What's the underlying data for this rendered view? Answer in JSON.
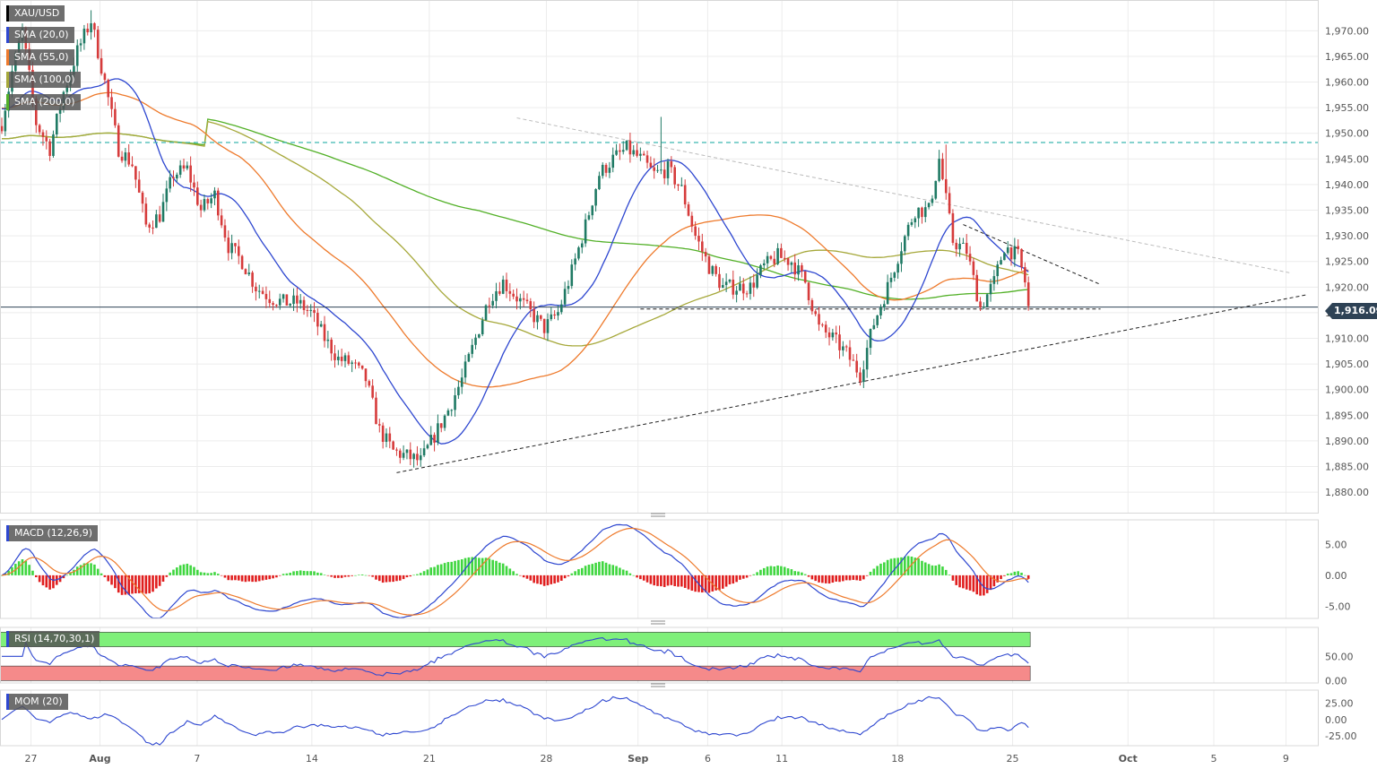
{
  "symbol": "XAU/USD",
  "last_price": "1,916.09",
  "indicators": {
    "sma20": "SMA (20,0)",
    "sma55": "SMA (55,0)",
    "sma100": "SMA (100,0)",
    "sma200": "SMA (200,0)",
    "macd": "MACD (12,26,9)",
    "rsi": "RSI (14,70,30,1)",
    "mom": "MOM (20)"
  },
  "colors": {
    "sma20": "#2e47d0",
    "sma55": "#ee7a2c",
    "sma100": "#a6a83a",
    "sma200": "#52b027",
    "bull": "#1f7a64",
    "bear": "#d63b3b",
    "resistance": "#3cb6b0",
    "rsi_overbought": "#7ff07a",
    "rsi_oversold": "#f58a8a"
  },
  "chart_data": {
    "type": "candlestick",
    "x_tick_labels": [
      "27",
      "Aug",
      "7",
      "14",
      "21",
      "28",
      "Sep",
      "6",
      "11",
      "18",
      "25",
      "Oct",
      "5",
      "9"
    ],
    "price_axis": {
      "ticks": [
        "1,970.00",
        "1,965.00",
        "1,960.00",
        "1,955.00",
        "1,950.00",
        "1,945.00",
        "1,940.00",
        "1,935.00",
        "1,930.00",
        "1,925.00",
        "1,920.00",
        "1,915.00",
        "1,910.00",
        "1,905.00",
        "1,900.00",
        "1,895.00",
        "1,890.00",
        "1,885.00",
        "1,880.00"
      ],
      "range": [
        1876,
        1976
      ]
    },
    "horizontal_levels": [
      1948.2,
      1916.09,
      1915.9
    ],
    "trendlines": [
      {
        "style": "dotted",
        "from_index": 150,
        "from_value": 1953,
        "to_index": 375,
        "to_value": 1922.8
      },
      {
        "style": "dashed",
        "from_index": 115,
        "from_value": 1883.8,
        "to_index": 380,
        "to_value": 1918.5
      },
      {
        "style": "dashed",
        "from_index": 280,
        "from_value": 1932.2,
        "to_index": 320,
        "to_value": 1920.5
      }
    ],
    "anchors": [
      [
        0,
        1952
      ],
      [
        3,
        1962
      ],
      [
        6,
        1970
      ],
      [
        10,
        1952
      ],
      [
        14,
        1947
      ],
      [
        18,
        1958
      ],
      [
        22,
        1966
      ],
      [
        26,
        1972
      ],
      [
        30,
        1960
      ],
      [
        34,
        1947
      ],
      [
        38,
        1944
      ],
      [
        42,
        1932
      ],
      [
        46,
        1934
      ],
      [
        50,
        1942
      ],
      [
        54,
        1943
      ],
      [
        58,
        1935
      ],
      [
        62,
        1938
      ],
      [
        66,
        1928
      ],
      [
        70,
        1925
      ],
      [
        74,
        1920
      ],
      [
        78,
        1918
      ],
      [
        82,
        1917
      ],
      [
        86,
        1917
      ],
      [
        90,
        1915
      ],
      [
        94,
        1910
      ],
      [
        98,
        1906
      ],
      [
        102,
        1905
      ],
      [
        106,
        1902
      ],
      [
        110,
        1892
      ],
      [
        114,
        1888
      ],
      [
        118,
        1887
      ],
      [
        122,
        1886
      ],
      [
        126,
        1891
      ],
      [
        130,
        1896
      ],
      [
        134,
        1902
      ],
      [
        138,
        1910
      ],
      [
        142,
        1918
      ],
      [
        146,
        1921
      ],
      [
        150,
        1918
      ],
      [
        154,
        1915
      ],
      [
        158,
        1912
      ],
      [
        162,
        1915
      ],
      [
        166,
        1923
      ],
      [
        170,
        1932
      ],
      [
        174,
        1942
      ],
      [
        178,
        1945
      ],
      [
        182,
        1947
      ],
      [
        186,
        1945
      ],
      [
        190,
        1942
      ],
      [
        194,
        1943
      ],
      [
        198,
        1939
      ],
      [
        202,
        1930
      ],
      [
        206,
        1924
      ],
      [
        210,
        1920
      ],
      [
        214,
        1920
      ],
      [
        218,
        1920
      ],
      [
        222,
        1924
      ],
      [
        226,
        1926
      ],
      [
        230,
        1925
      ],
      [
        234,
        1921
      ],
      [
        238,
        1912
      ],
      [
        242,
        1910
      ],
      [
        246,
        1907
      ],
      [
        250,
        1903
      ],
      [
        254,
        1913
      ],
      [
        258,
        1920
      ],
      [
        262,
        1928
      ],
      [
        266,
        1935
      ],
      [
        270,
        1935
      ],
      [
        273,
        1945
      ],
      [
        277,
        1929
      ],
      [
        281,
        1927
      ],
      [
        285,
        1916
      ],
      [
        289,
        1921
      ],
      [
        292,
        1928
      ],
      [
        296,
        1926
      ],
      [
        298,
        1921
      ],
      [
        299,
        1916
      ]
    ],
    "macd_panel": {
      "ticks": [
        "5.00",
        "0.00",
        "-5.00"
      ],
      "range": [
        -7,
        9
      ]
    },
    "rsi_panel": {
      "ticks": [
        "50.00",
        "0.00"
      ],
      "overbought": 70,
      "oversold": 30,
      "range": [
        -5,
        110
      ]
    },
    "mom_panel": {
      "ticks": [
        "25.00",
        "0.00",
        "-25.00"
      ],
      "range": [
        -40,
        45
      ]
    }
  }
}
